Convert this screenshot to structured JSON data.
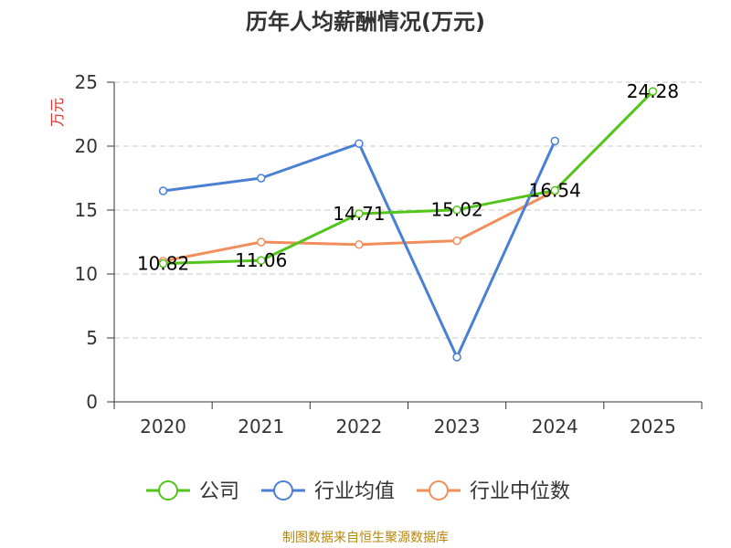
{
  "chart_data": {
    "type": "line",
    "title": "历年人均薪酬情况(万元)",
    "ylabel": "万元",
    "xlabel": "",
    "categories": [
      "2020",
      "2021",
      "2022",
      "2023",
      "2024",
      "2025"
    ],
    "ylim": [
      0,
      25
    ],
    "yticks": [
      0,
      5,
      10,
      15,
      20,
      25
    ],
    "grid": true,
    "legend_position": "bottom",
    "series": [
      {
        "name": "公司",
        "color": "#52c41a",
        "values": [
          10.82,
          11.06,
          14.71,
          15.02,
          16.54,
          24.28
        ],
        "labels": [
          "10.82",
          "11.06",
          "14.71",
          "15.02",
          "16.54",
          "24.28"
        ]
      },
      {
        "name": "行业均值",
        "color": "#4a7fd4",
        "values": [
          16.5,
          17.5,
          20.2,
          3.5,
          20.4,
          null
        ]
      },
      {
        "name": "行业中位数",
        "color": "#f28e5b",
        "values": [
          11.0,
          12.5,
          12.3,
          12.6,
          16.5,
          null
        ]
      }
    ]
  },
  "ylabel_color": "#e0302d",
  "source": {
    "text": "制图数据来自恒生聚源数据库",
    "color": "#b8860b"
  }
}
